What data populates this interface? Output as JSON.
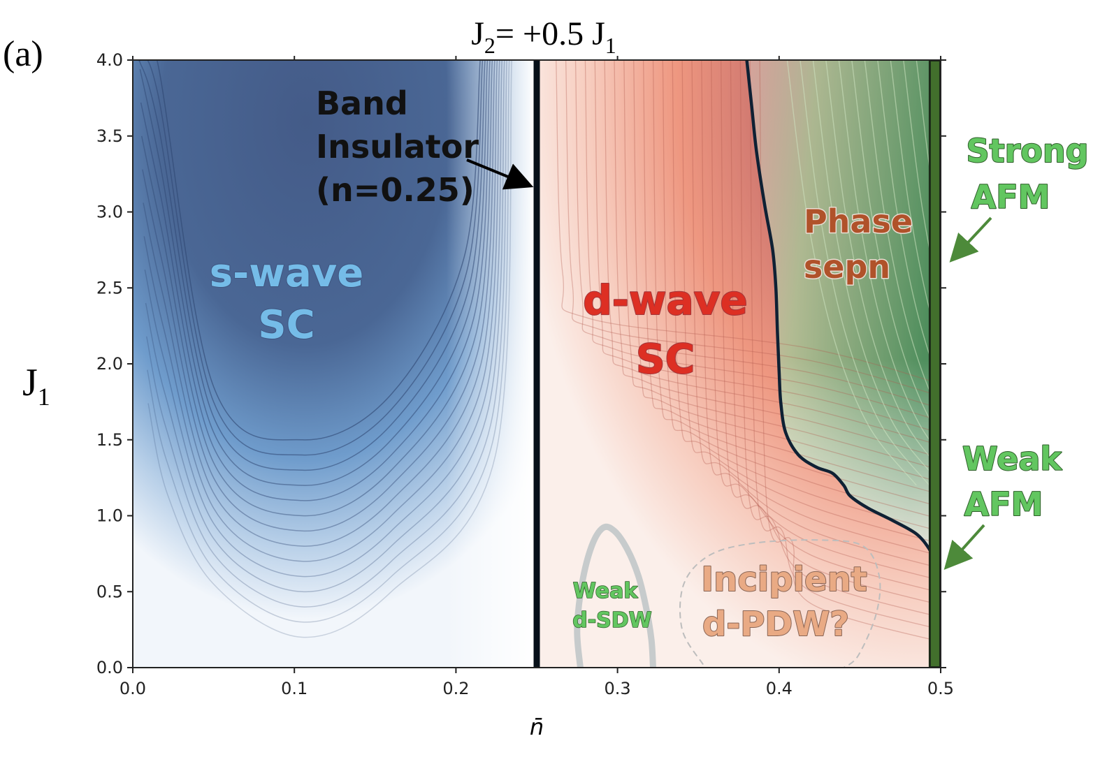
{
  "chart_data": {
    "type": "heatmap",
    "panel_label": "(a)",
    "title_main": "J",
    "title_main_sub": "2",
    "title_rest": "= +0.5 J",
    "title_rest_sub": "1",
    "xlabel": "n̄",
    "ylabel_main": "J",
    "ylabel_sub": "1",
    "xlim": [
      0.0,
      0.5
    ],
    "ylim": [
      0.0,
      4.0
    ],
    "x_ticks": [
      0.0,
      0.1,
      0.2,
      0.3,
      0.4,
      0.5
    ],
    "x_tick_labels": [
      "0.0",
      "0.1",
      "0.2",
      "0.3",
      "0.4",
      "0.5"
    ],
    "y_ticks": [
      0.0,
      0.5,
      1.0,
      1.5,
      2.0,
      2.5,
      3.0,
      3.5,
      4.0
    ],
    "y_tick_labels": [
      "0.0",
      "0.5",
      "1.0",
      "1.5",
      "2.0",
      "2.5",
      "3.0",
      "3.5",
      "4.0"
    ],
    "band_insulator_line": {
      "x": 0.25
    },
    "afm_line": {
      "x": 0.4965
    },
    "phase_boundary": [
      [
        0.38,
        4.0
      ],
      [
        0.383,
        3.7
      ],
      [
        0.386,
        3.4
      ],
      [
        0.391,
        3.05
      ],
      [
        0.396,
        2.75
      ],
      [
        0.398,
        2.5
      ],
      [
        0.399,
        2.2
      ],
      [
        0.4,
        1.95
      ],
      [
        0.401,
        1.75
      ],
      [
        0.404,
        1.55
      ],
      [
        0.412,
        1.4
      ],
      [
        0.423,
        1.32
      ],
      [
        0.433,
        1.28
      ],
      [
        0.44,
        1.2
      ],
      [
        0.444,
        1.13
      ],
      [
        0.455,
        1.05
      ],
      [
        0.47,
        0.97
      ],
      [
        0.485,
        0.88
      ],
      [
        0.493,
        0.78
      ],
      [
        0.495,
        0.72
      ]
    ],
    "sdw_boundary": [
      [
        0.277,
        0.0
      ],
      [
        0.275,
        0.25
      ],
      [
        0.278,
        0.55
      ],
      [
        0.284,
        0.8
      ],
      [
        0.291,
        0.92
      ],
      [
        0.298,
        0.9
      ],
      [
        0.306,
        0.78
      ],
      [
        0.313,
        0.6
      ],
      [
        0.318,
        0.38
      ],
      [
        0.321,
        0.18
      ],
      [
        0.322,
        0.0
      ]
    ],
    "pdw_boundary": [
      [
        0.353,
        0.02
      ],
      [
        0.34,
        0.25
      ],
      [
        0.341,
        0.55
      ],
      [
        0.357,
        0.74
      ],
      [
        0.385,
        0.82
      ],
      [
        0.425,
        0.84
      ],
      [
        0.452,
        0.8
      ],
      [
        0.462,
        0.6
      ],
      [
        0.46,
        0.35
      ],
      [
        0.449,
        0.08
      ],
      [
        0.44,
        0.0
      ]
    ],
    "s_wave_min_contour_trough": {
      "x": 0.105,
      "y": 1.5
    },
    "annotations": {
      "band_insulator": [
        "Band",
        "Insulator",
        "(n=0.25)"
      ],
      "s_wave": [
        "s-wave",
        "SC"
      ],
      "d_wave": [
        "d-wave",
        "SC"
      ],
      "phase_sep": [
        "Phase",
        "sepn"
      ],
      "strong_afm": [
        "Strong",
        "AFM"
      ],
      "weak_afm": [
        "Weak",
        "AFM"
      ],
      "weak_sdw": [
        "Weak",
        "d-SDW"
      ],
      "pdw": [
        "Incipient",
        "d-PDW?"
      ]
    },
    "colors": {
      "s_wave_dark": "#445b88",
      "s_wave_light": "#c9dbee",
      "d_wave_dark": "#a26571",
      "d_wave_light": "#f6d6cb",
      "phase_sep_green": "#4f8e5d",
      "afm_bar": "#426f2c",
      "boundary": "#0f2134",
      "s_wave_label": "#75bce8",
      "d_wave_label": "#dd2f23",
      "phase_sep_label": "#b0522a",
      "afm_label": "#62c660",
      "pdw_label": "#e9aa84"
    }
  }
}
